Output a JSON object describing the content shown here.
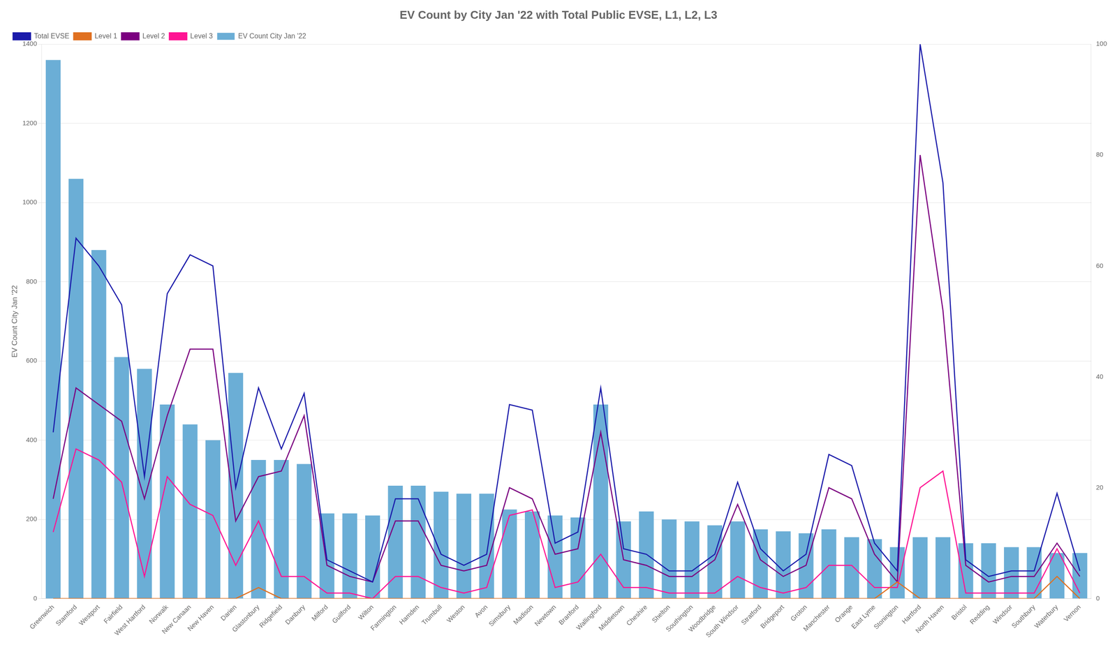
{
  "chart_data": {
    "type": "bar",
    "title": "EV Count by City Jan '22 with Total Public EVSE, L1, L2, L3",
    "y_label": "EV Count City Jan '22",
    "categories": [
      "Greenwich",
      "Stamford",
      "Westport",
      "Fairfield",
      "West Hartford",
      "Norwalk",
      "New Canaan",
      "New Haven",
      "Darien",
      "Glastonbury",
      "Ridgefield",
      "Danbury",
      "Milford",
      "Guilford",
      "Wilton",
      "Farmington",
      "Hamden",
      "Trumbull",
      "Weston",
      "Avon",
      "Simsbury",
      "Madison",
      "Newtown",
      "Branford",
      "Wallingford",
      "Middletown",
      "Cheshire",
      "Shelton",
      "Southington",
      "Woodbridge",
      "South Windsor",
      "Stratford",
      "Bridgeport",
      "Groton",
      "Manchester",
      "Orange",
      "East Lyme",
      "Stonington",
      "Hartford",
      "North Haven",
      "Bristol",
      "Redding",
      "Windsor",
      "Southbury",
      "Waterbury",
      "Vernon"
    ],
    "series": [
      {
        "name": "EV Count City Jan '22",
        "type": "bar",
        "axis": "y",
        "color": "#6baed6",
        "values": [
          1360,
          1060,
          880,
          610,
          580,
          490,
          440,
          400,
          570,
          350,
          350,
          340,
          215,
          215,
          210,
          285,
          285,
          270,
          265,
          265,
          225,
          220,
          210,
          205,
          490,
          195,
          220,
          200,
          195,
          185,
          195,
          175,
          170,
          165,
          175,
          155,
          150,
          130,
          155,
          155,
          140,
          140,
          130,
          130,
          115,
          115
        ]
      },
      {
        "name": "Total EVSE",
        "type": "line",
        "axis": "y2",
        "color": "#1a1aaa",
        "values": [
          30,
          65,
          60,
          53,
          22,
          55,
          62,
          60,
          20,
          38,
          27,
          37,
          7,
          5,
          3,
          18,
          18,
          8,
          6,
          8,
          35,
          34,
          10,
          12,
          38,
          9,
          8,
          5,
          5,
          8,
          21,
          9,
          5,
          8,
          26,
          24,
          10,
          5,
          100,
          75,
          7,
          4,
          5,
          5,
          19,
          5
        ]
      },
      {
        "name": "Level 1",
        "type": "line",
        "axis": "y2",
        "color": "#e07020",
        "values": [
          0,
          0,
          0,
          0,
          0,
          0,
          0,
          0,
          0,
          2,
          0,
          0,
          0,
          0,
          0,
          0,
          0,
          0,
          0,
          0,
          0,
          0,
          0,
          0,
          0,
          0,
          0,
          0,
          0,
          0,
          0,
          0,
          0,
          0,
          0,
          0,
          0,
          3,
          0,
          0,
          0,
          0,
          0,
          0,
          4,
          0
        ]
      },
      {
        "name": "Level 2",
        "type": "line",
        "axis": "y2",
        "color": "#7B0080",
        "values": [
          18,
          38,
          35,
          32,
          18,
          33,
          45,
          45,
          14,
          22,
          23,
          33,
          6,
          4,
          3,
          14,
          14,
          6,
          5,
          6,
          20,
          18,
          8,
          9,
          30,
          7,
          6,
          4,
          4,
          7,
          17,
          7,
          4,
          6,
          20,
          18,
          8,
          3,
          80,
          52,
          6,
          3,
          4,
          4,
          10,
          4
        ]
      },
      {
        "name": "Level 3",
        "type": "line",
        "axis": "y2",
        "color": "#FF1493",
        "values": [
          12,
          27,
          25,
          21,
          4,
          22,
          17,
          15,
          6,
          14,
          4,
          4,
          1,
          1,
          0,
          4,
          4,
          2,
          1,
          2,
          15,
          16,
          2,
          3,
          8,
          2,
          2,
          1,
          1,
          1,
          4,
          2,
          1,
          2,
          6,
          6,
          2,
          2,
          20,
          23,
          1,
          1,
          1,
          1,
          9,
          1
        ]
      }
    ],
    "ylim": [
      0,
      1400
    ],
    "yticks": [
      0,
      200,
      400,
      600,
      800,
      1000,
      1200,
      1400
    ],
    "y2lim": [
      0,
      100
    ],
    "y2ticks": [
      0,
      20,
      40,
      60,
      80,
      100
    ],
    "grid": "y",
    "legend": "upper left"
  }
}
